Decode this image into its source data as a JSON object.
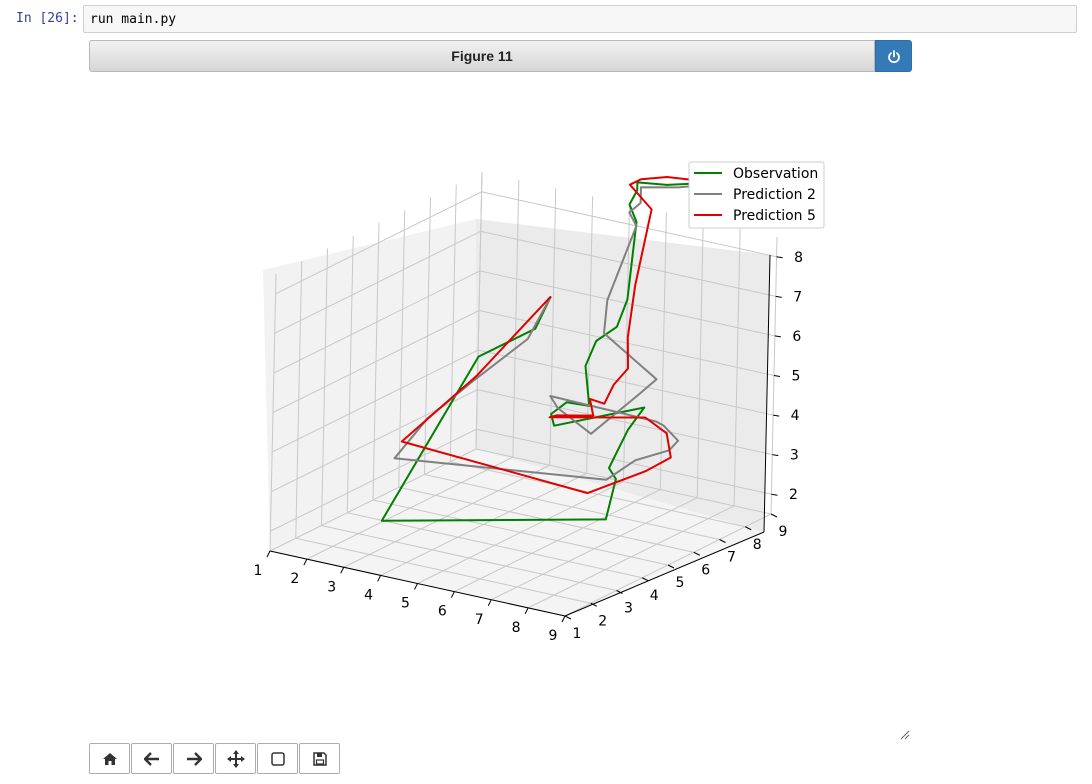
{
  "cell": {
    "prompt": "In [26]:",
    "code": "run main.py"
  },
  "figure": {
    "title": "Figure 11",
    "power_icon": "power-icon"
  },
  "toolbar": {
    "items": [
      "home-icon",
      "back-arrow-icon",
      "forward-arrow-icon",
      "pan-move-icon",
      "zoom-rect-icon",
      "save-floppy-icon"
    ]
  },
  "chart_data": {
    "type": "line",
    "projection": "3d",
    "xlim": [
      1,
      9
    ],
    "ylim": [
      1,
      9
    ],
    "zlim": [
      1.5,
      8.5
    ],
    "x_ticks": [
      "1",
      "2",
      "3",
      "4",
      "5",
      "6",
      "7",
      "8",
      "9"
    ],
    "y_ticks": [
      "1",
      "2",
      "3",
      "4",
      "5",
      "6",
      "7",
      "8",
      "9"
    ],
    "z_ticks": [
      "2",
      "3",
      "4",
      "5",
      "6",
      "7",
      "8"
    ],
    "grid": true,
    "legend_position": "top-right",
    "series": [
      {
        "name": "Observation",
        "color": "#008000",
        "points": [
          [
            3.0,
            8.9,
            5.8
          ],
          [
            2.6,
            8.9,
            4.9
          ],
          [
            1.7,
            8.0,
            4.3
          ],
          [
            1.8,
            4.2,
            1.4
          ],
          [
            6.4,
            6.3,
            1.7
          ],
          [
            6.1,
            7.1,
            2.4
          ],
          [
            5.7,
            7.4,
            2.5
          ],
          [
            5.6,
            7.8,
            2.7
          ],
          [
            5.5,
            8.4,
            3.1
          ],
          [
            6.0,
            8.3,
            3.8
          ],
          [
            4.4,
            7.1,
            3.4
          ],
          [
            3.9,
            7.7,
            3.4
          ],
          [
            3.9,
            8.3,
            3.5
          ],
          [
            5.2,
            7.3,
            4.0
          ],
          [
            4.8,
            7.7,
            4.8
          ],
          [
            4.8,
            8.1,
            5.3
          ],
          [
            4.8,
            8.9,
            5.4
          ],
          [
            5.0,
            9.0,
            6.1
          ],
          [
            5.2,
            9.0,
            8.1
          ],
          [
            5.0,
            9.0,
            8.5
          ],
          [
            5.2,
            9.0,
            8.9
          ],
          [
            5.2,
            9.0,
            9.1
          ],
          [
            6.0,
            9.0,
            9.2
          ],
          [
            6.8,
            9.0,
            9.4
          ],
          [
            7.3,
            9.0,
            9.5
          ]
        ]
      },
      {
        "name": "Prediction 2",
        "color": "#808080",
        "points": [
          [
            3.0,
            8.9,
            5.8
          ],
          [
            2.4,
            8.9,
            4.6
          ],
          [
            1.8,
            7.6,
            3.8
          ],
          [
            1.6,
            6.2,
            3.3
          ],
          [
            1.9,
            4.5,
            2.9
          ],
          [
            5.5,
            7.6,
            2.1
          ],
          [
            6.2,
            7.7,
            2.7
          ],
          [
            6.9,
            8.0,
            3.0
          ],
          [
            7.0,
            8.2,
            3.2
          ],
          [
            6.6,
            8.2,
            3.5
          ],
          [
            6.6,
            7.9,
            3.7
          ],
          [
            3.8,
            7.8,
            3.8
          ],
          [
            3.8,
            8.1,
            3.4
          ],
          [
            5.4,
            7.1,
            3.4
          ],
          [
            5.7,
            8.5,
            4.0
          ],
          [
            5.9,
            8.9,
            4.3
          ],
          [
            4.8,
            8.4,
            5.4
          ],
          [
            4.8,
            8.5,
            6.2
          ],
          [
            5.2,
            9.0,
            8.0
          ],
          [
            5.0,
            9.0,
            8.3
          ],
          [
            5.3,
            9.0,
            8.6
          ],
          [
            5.3,
            9.0,
            9.0
          ],
          [
            6.3,
            9.0,
            9.2
          ],
          [
            7.0,
            9.0,
            9.4
          ]
        ]
      },
      {
        "name": "Prediction 5",
        "color": "#e00000",
        "points": [
          [
            3.0,
            8.9,
            5.8
          ],
          [
            2.3,
            8.8,
            4.9
          ],
          [
            1.8,
            7.8,
            3.9
          ],
          [
            1.4,
            5.5,
            2.9
          ],
          [
            6.1,
            6.0,
            2.4
          ],
          [
            7.1,
            6.8,
            2.9
          ],
          [
            7.5,
            7.2,
            3.2
          ],
          [
            7.1,
            7.6,
            3.6
          ],
          [
            6.1,
            8.2,
            3.6
          ],
          [
            4.0,
            7.5,
            3.4
          ],
          [
            3.9,
            7.9,
            3.3
          ],
          [
            4.9,
            7.9,
            3.5
          ],
          [
            4.8,
            7.9,
            3.9
          ],
          [
            5.4,
            7.6,
            4.0
          ],
          [
            5.3,
            8.1,
            4.3
          ],
          [
            5.4,
            8.5,
            4.6
          ],
          [
            5.1,
            8.9,
            5.2
          ],
          [
            5.2,
            9.0,
            6.5
          ],
          [
            5.6,
            9.0,
            8.5
          ],
          [
            5.0,
            9.0,
            9.0
          ],
          [
            5.3,
            9.0,
            9.2
          ],
          [
            6.0,
            9.0,
            9.4
          ],
          [
            7.0,
            9.0,
            9.5
          ]
        ]
      }
    ]
  }
}
